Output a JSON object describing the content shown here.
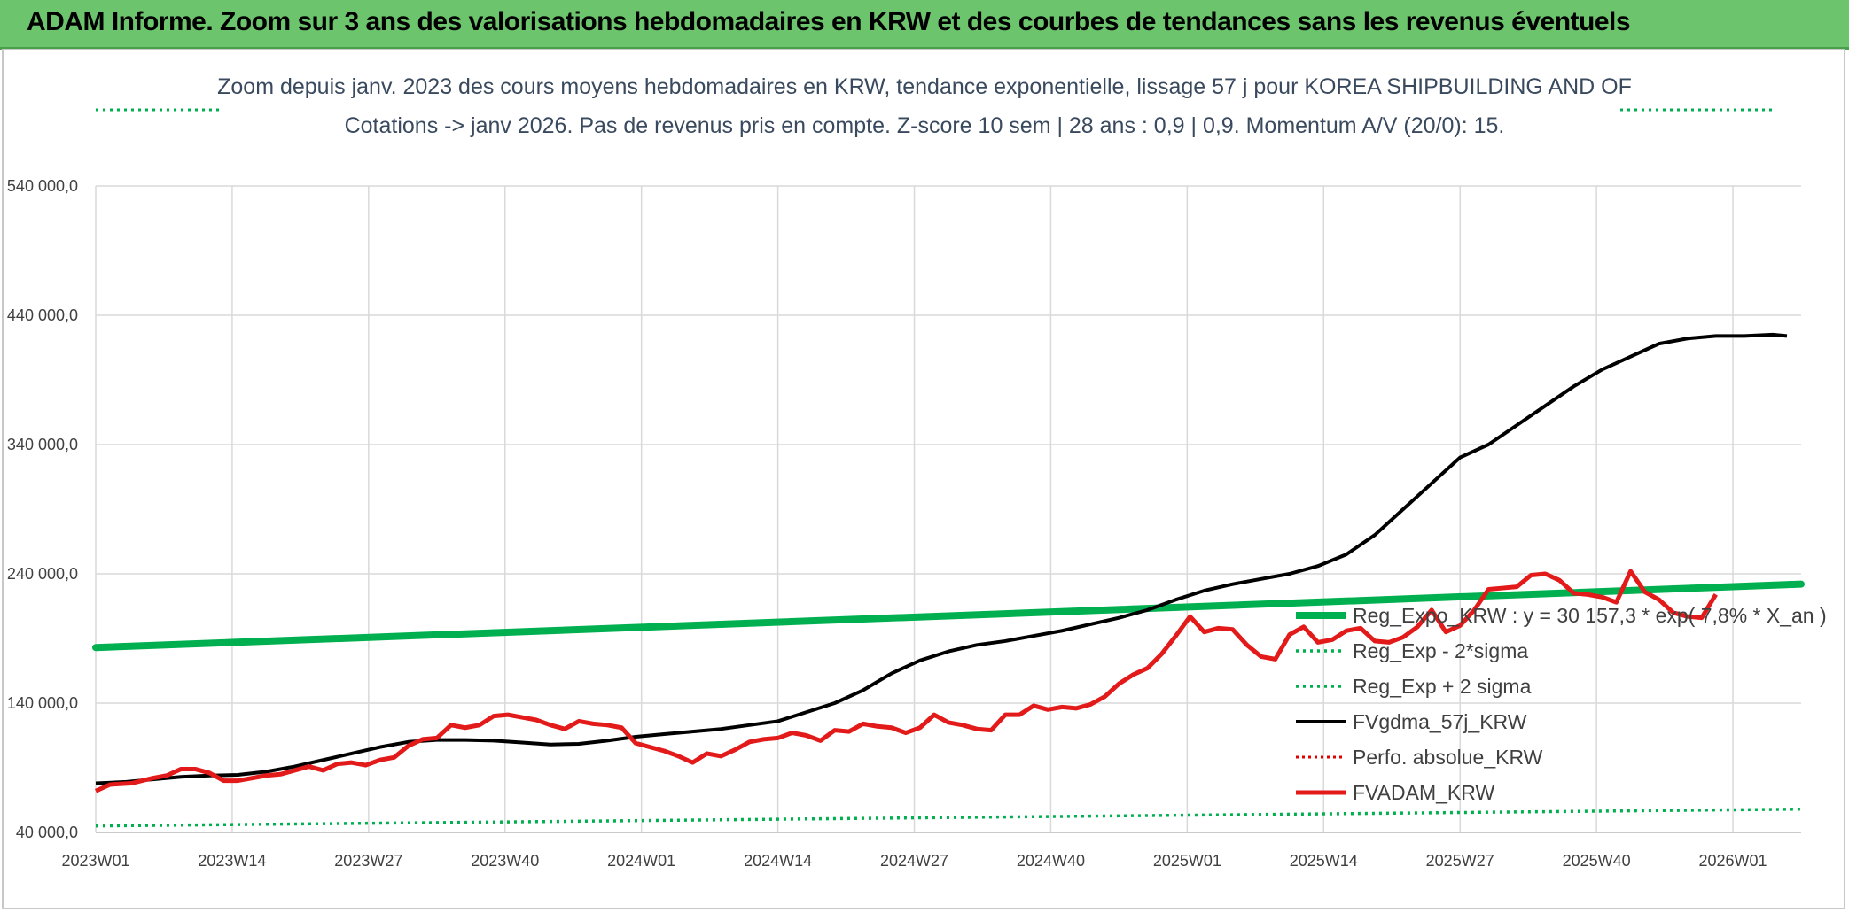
{
  "header": {
    "title": "ADAM Informe. Zoom sur 3 ans des valorisations hebdomadaires en KRW et des courbes de tendances sans les revenus éventuels"
  },
  "chart_data": {
    "type": "line",
    "title": "Zoom depuis janv. 2023 des cours moyens hebdomadaires en KRW, tendance exponentielle, lissage 57 j pour KOREA SHIPBUILDING AND OF",
    "subtitle": "Cotations -> janv 2026. Pas de revenus pris en compte. Z-score 10 sem | 28 ans : 0,9 | 0,9. Momentum A/V (20/0): 15.",
    "xlabel": "",
    "ylabel": "",
    "ylim": [
      40000,
      540000
    ],
    "yticks": [
      40000,
      140000,
      240000,
      340000,
      440000,
      540000
    ],
    "ytick_labels": [
      "40 000,0",
      "140 000,0",
      "240 000,0",
      "340 000,0",
      "440 000,0",
      "540 000,0"
    ],
    "xtick_labels": [
      "2023W01",
      "2023W14",
      "2023W27",
      "2023W40",
      "2024W01",
      "2024W14",
      "2024W27",
      "2024W40",
      "2025W01",
      "2025W14",
      "2025W27",
      "2025W40",
      "2026W01"
    ],
    "grid": true,
    "legend_position": "bottom-right",
    "colors": {
      "reg_expo": "#00b050",
      "sigma": "#00b050",
      "mm57": "#000000",
      "perf": "#e00000",
      "price": "#e31a1a"
    },
    "series": [
      {
        "name": "Reg_Expo_KRW : y = 30 157,3 * exp( 7,8% * X_an )",
        "style": "thick-green",
        "start": [
          0,
          183000
        ],
        "end": [
          160,
          232000
        ]
      },
      {
        "name": "Reg_Exp - 2*sigma",
        "style": "dotted-green",
        "start": [
          0,
          45000
        ],
        "end": [
          160,
          58000
        ]
      },
      {
        "name": "Reg_Exp + 2 sigma",
        "style": "dotted-green"
      },
      {
        "name": "FVgdma_57j_KRW",
        "style": "black",
        "points": [
          [
            0,
            78000
          ],
          [
            4,
            79000
          ],
          [
            8,
            81000
          ],
          [
            12,
            83000
          ],
          [
            16,
            84000
          ],
          [
            20,
            84500
          ],
          [
            24,
            87000
          ],
          [
            28,
            91000
          ],
          [
            32,
            96000
          ],
          [
            36,
            101000
          ],
          [
            40,
            106000
          ],
          [
            44,
            110000
          ],
          [
            48,
            111500
          ],
          [
            52,
            111500
          ],
          [
            56,
            111000
          ],
          [
            60,
            109500
          ],
          [
            64,
            108000
          ],
          [
            68,
            108500
          ],
          [
            72,
            111000
          ],
          [
            76,
            114000
          ],
          [
            80,
            116000
          ],
          [
            84,
            118000
          ],
          [
            88,
            120000
          ],
          [
            92,
            123000
          ],
          [
            96,
            126000
          ],
          [
            100,
            133000
          ],
          [
            104,
            140000
          ],
          [
            108,
            150000
          ],
          [
            112,
            163000
          ],
          [
            116,
            173000
          ],
          [
            120,
            180000
          ],
          [
            124,
            185000
          ],
          [
            128,
            188000
          ],
          [
            132,
            192000
          ],
          [
            136,
            196000
          ],
          [
            140,
            201000
          ],
          [
            144,
            206000
          ],
          [
            148,
            212000
          ],
          [
            152,
            220000
          ],
          [
            156,
            227000
          ],
          [
            160,
            232000
          ],
          [
            164,
            236000
          ],
          [
            168,
            240000
          ],
          [
            172,
            246000
          ],
          [
            176,
            255000
          ],
          [
            180,
            270000
          ],
          [
            184,
            290000
          ],
          [
            188,
            310000
          ],
          [
            192,
            330000
          ],
          [
            196,
            340000
          ],
          [
            200,
            355000
          ],
          [
            204,
            370000
          ],
          [
            208,
            385000
          ],
          [
            212,
            398000
          ],
          [
            216,
            408000
          ],
          [
            220,
            418000
          ],
          [
            224,
            422000
          ],
          [
            228,
            424000
          ],
          [
            232,
            424000
          ],
          [
            236,
            425000
          ],
          [
            238,
            424000
          ]
        ]
      },
      {
        "name": "Perfo. absolue_KRW",
        "style": "dotted-red"
      },
      {
        "name": "FVADAM_KRW",
        "style": "red",
        "points": [
          [
            0,
            72000
          ],
          [
            2,
            77000
          ],
          [
            5,
            78000
          ],
          [
            8,
            82000
          ],
          [
            10,
            84000
          ],
          [
            12,
            89000
          ],
          [
            14,
            89000
          ],
          [
            16,
            86000
          ],
          [
            18,
            80000
          ],
          [
            20,
            80000
          ],
          [
            22,
            82000
          ],
          [
            24,
            84000
          ],
          [
            26,
            85000
          ],
          [
            28,
            88000
          ],
          [
            30,
            91000
          ],
          [
            32,
            88000
          ],
          [
            34,
            93000
          ],
          [
            36,
            94000
          ],
          [
            38,
            92000
          ],
          [
            40,
            96000
          ],
          [
            42,
            98000
          ],
          [
            44,
            107000
          ],
          [
            46,
            112000
          ],
          [
            48,
            113000
          ],
          [
            50,
            123000
          ],
          [
            52,
            121000
          ],
          [
            54,
            123000
          ],
          [
            56,
            130000
          ],
          [
            58,
            131000
          ],
          [
            60,
            129000
          ],
          [
            62,
            127000
          ],
          [
            64,
            123000
          ],
          [
            66,
            120000
          ],
          [
            68,
            126000
          ],
          [
            70,
            124000
          ],
          [
            72,
            123000
          ],
          [
            74,
            121000
          ],
          [
            76,
            109000
          ],
          [
            78,
            106000
          ],
          [
            80,
            103000
          ],
          [
            82,
            99000
          ],
          [
            84,
            94000
          ],
          [
            86,
            101000
          ],
          [
            88,
            99000
          ],
          [
            90,
            104000
          ],
          [
            92,
            110000
          ],
          [
            94,
            112000
          ],
          [
            96,
            113000
          ],
          [
            98,
            117000
          ],
          [
            100,
            115000
          ],
          [
            102,
            111000
          ],
          [
            104,
            119000
          ],
          [
            106,
            118000
          ],
          [
            108,
            124000
          ],
          [
            110,
            122000
          ],
          [
            112,
            121000
          ],
          [
            114,
            117000
          ],
          [
            116,
            121000
          ],
          [
            118,
            131000
          ],
          [
            120,
            125000
          ],
          [
            122,
            123000
          ],
          [
            124,
            120000
          ],
          [
            126,
            119000
          ],
          [
            128,
            131000
          ],
          [
            130,
            131000
          ],
          [
            132,
            138000
          ],
          [
            134,
            135000
          ],
          [
            136,
            137000
          ],
          [
            138,
            136000
          ],
          [
            140,
            139000
          ],
          [
            142,
            145000
          ],
          [
            144,
            155000
          ],
          [
            146,
            162000
          ],
          [
            148,
            167000
          ],
          [
            150,
            178000
          ],
          [
            152,
            192000
          ],
          [
            154,
            207000
          ],
          [
            156,
            195000
          ],
          [
            158,
            198000
          ],
          [
            160,
            197000
          ],
          [
            162,
            185000
          ],
          [
            164,
            176000
          ],
          [
            166,
            174000
          ],
          [
            168,
            193000
          ],
          [
            170,
            199000
          ],
          [
            172,
            187000
          ],
          [
            174,
            189000
          ],
          [
            176,
            196000
          ],
          [
            178,
            198000
          ],
          [
            180,
            188000
          ],
          [
            182,
            187000
          ],
          [
            184,
            191000
          ],
          [
            186,
            199000
          ],
          [
            188,
            212000
          ],
          [
            190,
            195000
          ],
          [
            192,
            200000
          ],
          [
            194,
            212000
          ],
          [
            196,
            228000
          ],
          [
            198,
            229000
          ],
          [
            200,
            230000
          ],
          [
            202,
            239000
          ],
          [
            204,
            240000
          ],
          [
            206,
            235000
          ],
          [
            208,
            225000
          ],
          [
            210,
            224000
          ],
          [
            212,
            222000
          ],
          [
            214,
            218000
          ],
          [
            216,
            242000
          ],
          [
            218,
            226000
          ],
          [
            220,
            220000
          ],
          [
            222,
            210000
          ],
          [
            224,
            207000
          ],
          [
            226,
            206000
          ],
          [
            228,
            224000
          ]
        ]
      }
    ]
  },
  "legend": {
    "items": [
      {
        "label": "Reg_Expo_KRW : y = 30 157,3 * exp( 7,8% *  X_an )"
      },
      {
        "label": "Reg_Exp - 2*sigma"
      },
      {
        "label": "Reg_Exp + 2 sigma"
      },
      {
        "label": "FVgdma_57j_KRW"
      },
      {
        "label": "Perfo. absolue_KRW"
      },
      {
        "label": "FVADAM_KRW"
      }
    ]
  }
}
